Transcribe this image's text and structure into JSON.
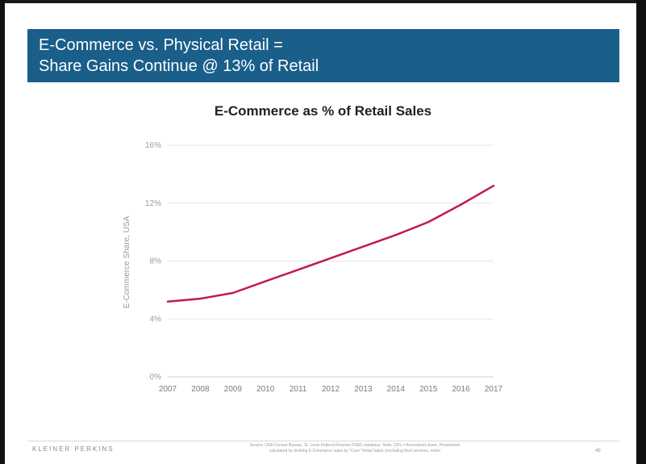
{
  "slide": {
    "title_line1": "E-Commerce vs. Physical Retail =",
    "title_line2": "Share Gains Continue @ 13% of Retail",
    "brand": "KLEINER PERKINS",
    "source": "Source: USA Census Bureau, St. Louis Federal Reserve FRED database. Note: 13% = Annualized share. Penetration calculated by dividing E-Commerce sales by \"Core\" Retail Sales (excluding food services, motor",
    "page_number": "46"
  },
  "colors": {
    "banner": "#1a5e8a",
    "line": "#c2185b",
    "grid": "#e6e6e6"
  },
  "chart_data": {
    "type": "line",
    "title": "E-Commerce as % of Retail Sales",
    "xlabel": "",
    "ylabel": "E-Commerce Share, USA",
    "x": [
      "2007",
      "2008",
      "2009",
      "2010",
      "2011",
      "2012",
      "2013",
      "2014",
      "2015",
      "2016",
      "2017"
    ],
    "series": [
      {
        "name": "E-Commerce Share",
        "values": [
          5.2,
          5.4,
          5.8,
          6.6,
          7.4,
          8.2,
          9.0,
          9.8,
          10.7,
          11.9,
          13.2
        ]
      }
    ],
    "ylim": [
      0,
      16
    ],
    "yticks": [
      0,
      4,
      8,
      12,
      16
    ],
    "ytick_labels": [
      "0%",
      "4%",
      "8%",
      "12%",
      "16%"
    ],
    "grid": true
  }
}
